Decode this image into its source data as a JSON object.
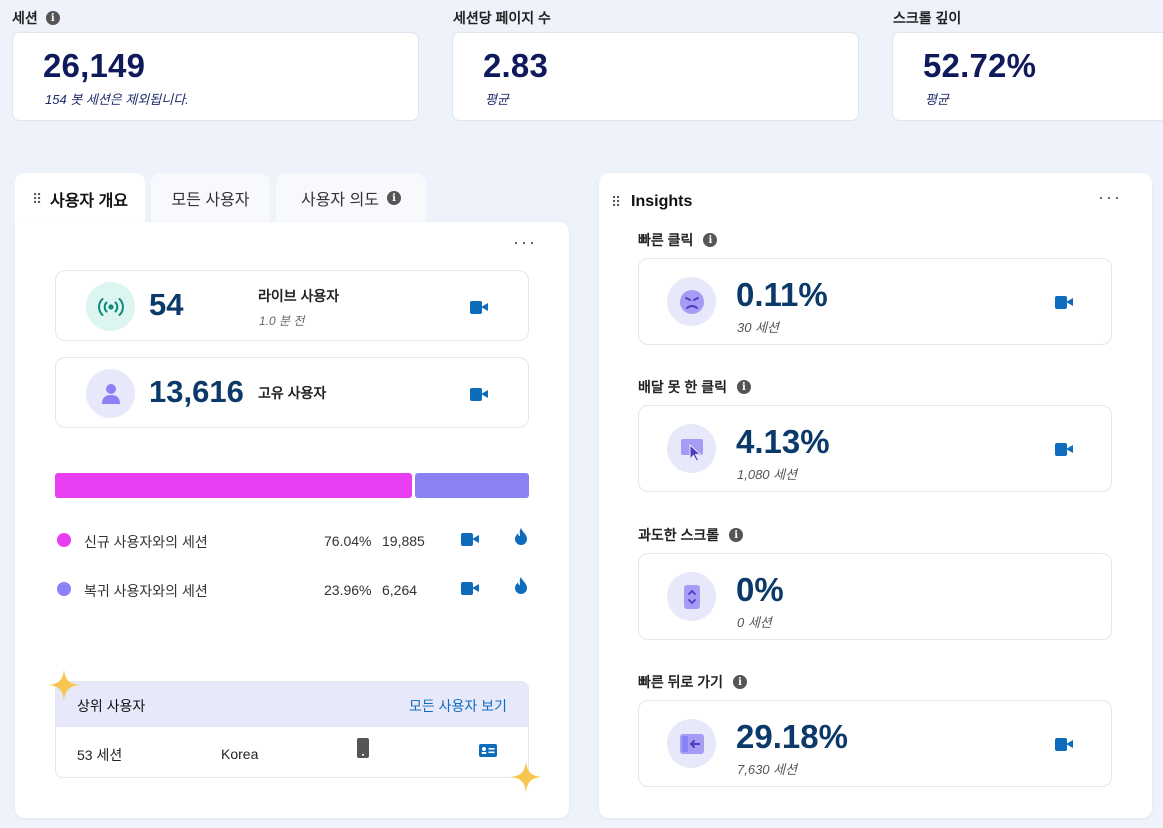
{
  "stats": [
    {
      "label": "세션",
      "value": "26,149",
      "sub": "154 봇 세션은 제외됩니다.",
      "has_info": true
    },
    {
      "label": "세션당 페이지 수",
      "value": "2.83",
      "sub": "평균"
    },
    {
      "label": "스크롤 깊이",
      "value": "52.72%",
      "sub": "평균"
    }
  ],
  "tabs": [
    "사용자 개요",
    "모든 사용자",
    "사용자 의도"
  ],
  "overview": {
    "live": {
      "value": "54",
      "label": "라이브 사용자",
      "sub": "1.0 분 전"
    },
    "unique": {
      "value": "13,616",
      "label": "고유 사용자"
    },
    "split": {
      "new_fraction": 0.7604,
      "new_color": "#e83ef2",
      "returning_color": "#8a82f4"
    },
    "rows": [
      {
        "label": "신규 사용자와의 세션",
        "percent": "76.04%",
        "count": "19,885",
        "color": "#e83ef2"
      },
      {
        "label": "복귀 사용자와의 세션",
        "percent": "23.96%",
        "count": "6,264",
        "color": "#8a82f4"
      }
    ],
    "top_users": {
      "title": "상위 사용자",
      "link": "모든 사용자 보기",
      "row": {
        "sessions": "53 세션",
        "country": "Korea"
      }
    }
  },
  "insights": {
    "title": "Insights",
    "items": [
      {
        "title": "빠른 클릭",
        "value": "0.11%",
        "sub": "30 세션",
        "icon": "angry-face-icon"
      },
      {
        "title": "배달 못 한 클릭",
        "value": "4.13%",
        "sub": "1,080 세션",
        "icon": "dead-click-cursor-icon"
      },
      {
        "title": "과도한 스크롤",
        "value": "0%",
        "sub": "0 세션",
        "icon": "scroll-phone-icon"
      },
      {
        "title": "빠른 뒤로 가기",
        "value": "29.18%",
        "sub": "7,630 세션",
        "icon": "back-arrow-icon"
      }
    ]
  },
  "colors": {
    "accent": "#0f6cbd",
    "navy": "#0f1a5c",
    "lavender": "#e8e8fb"
  }
}
